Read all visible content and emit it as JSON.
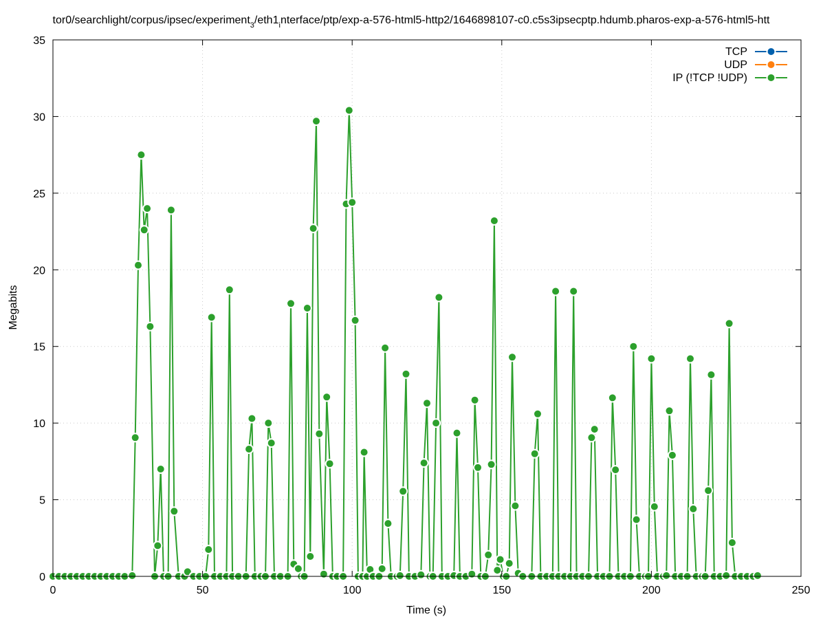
{
  "chart_data": {
    "type": "line",
    "title": "tor0/searchlight/corpus/ipsec/experiment_3/eth1_interface/ptp/exp-a-576-html5-http2/1646898107-c0.c5s3ipsecptp.hdumb.pharos-exp-a-576-html5-htt",
    "title_parts": {
      "p1": "tor0/searchlight/corpus/ipsec/experiment",
      "sub1": "3",
      "p2": "/eth1",
      "sub2": "i",
      "p3": "nterface/ptp/exp-a-576-html5-http2/1646898107-c0.c5s3ipsecptp.hdumb.pharos-exp-a-576-html5-htt"
    },
    "xlabel": "Time (s)",
    "ylabel": "Megabits",
    "xlim": [
      0,
      250
    ],
    "ylim": [
      0,
      35
    ],
    "x_ticks": [
      "0",
      "50",
      "100",
      "150",
      "200",
      "250"
    ],
    "y_ticks": [
      "0",
      "5",
      "10",
      "15",
      "20",
      "25",
      "30",
      "35"
    ],
    "grid": true,
    "legend_position": "top-right",
    "series": [
      {
        "name": "TCP",
        "color": "#0060ad",
        "points": []
      },
      {
        "name": "UDP",
        "color": "#ff7f0e",
        "points": []
      },
      {
        "name": "IP (!TCP  !UDP)",
        "color": "#2ca02c",
        "points": [
          [
            0,
            0
          ],
          [
            2,
            0
          ],
          [
            4,
            0
          ],
          [
            6,
            0
          ],
          [
            8,
            0
          ],
          [
            10,
            0
          ],
          [
            12,
            0
          ],
          [
            14,
            0
          ],
          [
            16,
            0
          ],
          [
            18,
            0
          ],
          [
            20,
            0
          ],
          [
            22,
            0
          ],
          [
            24,
            0
          ],
          [
            26.5,
            0.05
          ],
          [
            27.5,
            9.05
          ],
          [
            28.5,
            20.3
          ],
          [
            29.5,
            27.5
          ],
          [
            30.5,
            22.6
          ],
          [
            31.5,
            24.0
          ],
          [
            32.5,
            16.3
          ],
          [
            34,
            0.0
          ],
          [
            35,
            2.0
          ],
          [
            36,
            7.0
          ],
          [
            37,
            0.0
          ],
          [
            38.5,
            0.0
          ],
          [
            39.5,
            23.9
          ],
          [
            40.5,
            4.25
          ],
          [
            42,
            0
          ],
          [
            44,
            0
          ],
          [
            45,
            0.3
          ],
          [
            47,
            0
          ],
          [
            49,
            0
          ],
          [
            51,
            0.0
          ],
          [
            52,
            1.75
          ],
          [
            53,
            16.9
          ],
          [
            54,
            0
          ],
          [
            56,
            0
          ],
          [
            58,
            0.0
          ],
          [
            59,
            18.7
          ],
          [
            60,
            0
          ],
          [
            62,
            0
          ],
          [
            64.5,
            0.0
          ],
          [
            65.5,
            8.3
          ],
          [
            66.5,
            10.3
          ],
          [
            67.5,
            0
          ],
          [
            69.5,
            0
          ],
          [
            71,
            0.0
          ],
          [
            72,
            10.0
          ],
          [
            73,
            8.7
          ],
          [
            74,
            0
          ],
          [
            76,
            0
          ],
          [
            78.5,
            0.0
          ],
          [
            79.5,
            17.8
          ],
          [
            80.5,
            0.8
          ],
          [
            82,
            0.5
          ],
          [
            83,
            0
          ],
          [
            84,
            0.0
          ],
          [
            85,
            17.5
          ],
          [
            86,
            1.3
          ],
          [
            87,
            22.7
          ],
          [
            88,
            29.7
          ],
          [
            89,
            9.3
          ],
          [
            90.5,
            0.15
          ],
          [
            91.5,
            11.7
          ],
          [
            92.5,
            7.35
          ],
          [
            93.5,
            0
          ],
          [
            95,
            0
          ],
          [
            97,
            0.0
          ],
          [
            98,
            24.3
          ],
          [
            99,
            30.4
          ],
          [
            100,
            24.4
          ],
          [
            101,
            16.7
          ],
          [
            102,
            0
          ],
          [
            103.5,
            0.0
          ],
          [
            104,
            8.1
          ],
          [
            105,
            0
          ],
          [
            106,
            0.45
          ],
          [
            107,
            0
          ],
          [
            109,
            0.0
          ],
          [
            110,
            0.5
          ],
          [
            111,
            14.9
          ],
          [
            112,
            3.45
          ],
          [
            113,
            0
          ],
          [
            115,
            0
          ],
          [
            116,
            0.05
          ],
          [
            117,
            5.55
          ],
          [
            118,
            13.2
          ],
          [
            119,
            0
          ],
          [
            121,
            0
          ],
          [
            123,
            0.1
          ],
          [
            124,
            7.4
          ],
          [
            125,
            11.3
          ],
          [
            126,
            0
          ],
          [
            127,
            0.0
          ],
          [
            128,
            10.0
          ],
          [
            129,
            18.2
          ],
          [
            130,
            0
          ],
          [
            132,
            0
          ],
          [
            134,
            0.05
          ],
          [
            135,
            9.35
          ],
          [
            136,
            0
          ],
          [
            138,
            0
          ],
          [
            140,
            0.15
          ],
          [
            141,
            11.5
          ],
          [
            142,
            7.1
          ],
          [
            143,
            0
          ],
          [
            144.5,
            0.0
          ],
          [
            145.5,
            1.4
          ],
          [
            146.5,
            7.3
          ],
          [
            147.5,
            23.2
          ],
          [
            148.5,
            0.4
          ],
          [
            149.5,
            1.1
          ],
          [
            150.5,
            0
          ],
          [
            151.5,
            0.0
          ],
          [
            152.5,
            0.85
          ],
          [
            153.5,
            14.3
          ],
          [
            154.5,
            4.6
          ],
          [
            155.5,
            0.2
          ],
          [
            157,
            0
          ],
          [
            160,
            0.0
          ],
          [
            161,
            8.0
          ],
          [
            162,
            10.6
          ],
          [
            163,
            0
          ],
          [
            165,
            0
          ],
          [
            167,
            0.0
          ],
          [
            168,
            18.6
          ],
          [
            169,
            0
          ],
          [
            171,
            0
          ],
          [
            173,
            0.0
          ],
          [
            174,
            18.6
          ],
          [
            175,
            0
          ],
          [
            177,
            0
          ],
          [
            179,
            0.0
          ],
          [
            180,
            9.05
          ],
          [
            181,
            9.6
          ],
          [
            182,
            0
          ],
          [
            184,
            0
          ],
          [
            186,
            0.0
          ],
          [
            187,
            11.65
          ],
          [
            188,
            6.95
          ],
          [
            189,
            0
          ],
          [
            191,
            0
          ],
          [
            193,
            0.0
          ],
          [
            194,
            15.0
          ],
          [
            195,
            3.7
          ],
          [
            196,
            0
          ],
          [
            198,
            0
          ],
          [
            199,
            0.0
          ],
          [
            200,
            14.2
          ],
          [
            201,
            4.55
          ],
          [
            202,
            0
          ],
          [
            204,
            0
          ],
          [
            205,
            0.05
          ],
          [
            206,
            10.8
          ],
          [
            207,
            7.9
          ],
          [
            208,
            0
          ],
          [
            210,
            0
          ],
          [
            212,
            0.0
          ],
          [
            213,
            14.2
          ],
          [
            214,
            4.4
          ],
          [
            215,
            0
          ],
          [
            217,
            0
          ],
          [
            218,
            0.0
          ],
          [
            219,
            5.6
          ],
          [
            220,
            13.15
          ],
          [
            221,
            0
          ],
          [
            223,
            0
          ],
          [
            225,
            0.05
          ],
          [
            226,
            16.5
          ],
          [
            227,
            2.2
          ],
          [
            228,
            0
          ],
          [
            230,
            0
          ],
          [
            232,
            0
          ],
          [
            234,
            0
          ],
          [
            235.5,
            0.05
          ]
        ]
      }
    ]
  }
}
